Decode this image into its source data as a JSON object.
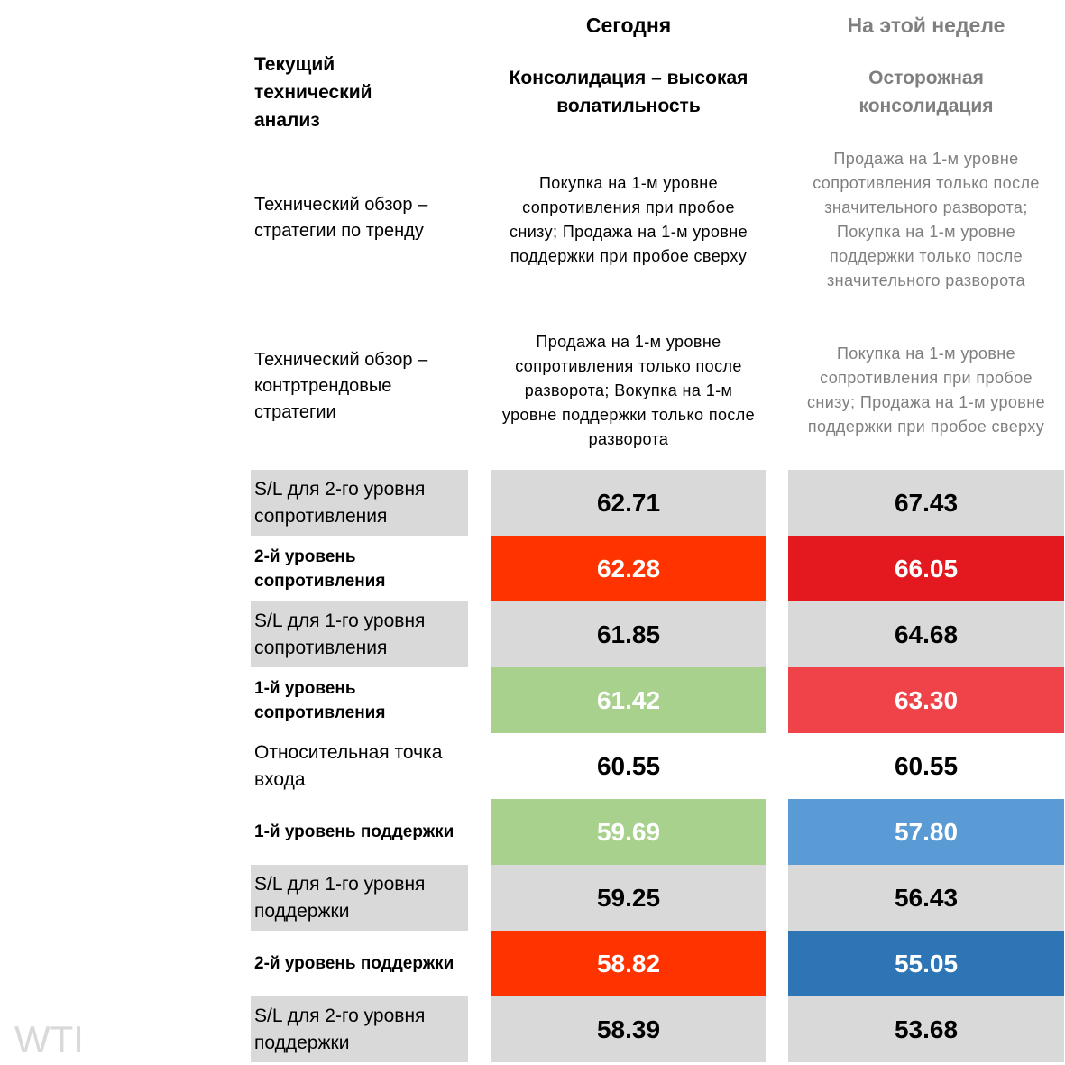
{
  "corner": "Текущий технический анализ",
  "columns": [
    {
      "title": "Сегодня",
      "subtitle": "Консолидация – высокая волатильность",
      "color": "#000000"
    },
    {
      "title": "На этой неделе",
      "subtitle": "Осторожная консолидация",
      "color": "#7f7f7f"
    }
  ],
  "strategies": [
    {
      "label": "Технический обзор – стратегии по тренду",
      "values": [
        "Покупка на 1-м уровне сопротивления при пробое снизу; Продажа на 1-м уровне поддержки при пробое сверху",
        "Продажа на 1-м уровне сопротивления только после значительного разворота; Покупка на 1-м уровне поддержки только после значительного разворота"
      ]
    },
    {
      "label": "Технический обзор – контртрендовые стратегии",
      "values": [
        "Продажа на 1-м уровне сопротивления только после разворота; Вокупка на 1-м уровне поддержки только после разворота",
        "Покупка на 1-м уровне сопротивления при пробое снизу; Продажа на 1-м уровне поддержки при пробое сверху"
      ]
    }
  ],
  "levels": [
    {
      "label": "S/L для 2-го уровня сопротивления",
      "bold": false,
      "label_fill": "#d9d9d9",
      "values": [
        "62.71",
        "67.43"
      ],
      "fills": [
        "#d9d9d9",
        "#d9d9d9"
      ],
      "text_colors": [
        "#000000",
        "#000000"
      ]
    },
    {
      "label": "2-й уровень сопротивления",
      "bold": true,
      "label_fill": "#ffffff",
      "values": [
        "62.28",
        "66.05"
      ],
      "fills": [
        "#ff3300",
        "#e3191f"
      ],
      "text_colors": [
        "#ffffff",
        "#ffffff"
      ]
    },
    {
      "label": "S/L для 1-го уровня сопротивления",
      "bold": false,
      "label_fill": "#d9d9d9",
      "values": [
        "61.85",
        "64.68"
      ],
      "fills": [
        "#d9d9d9",
        "#d9d9d9"
      ],
      "text_colors": [
        "#000000",
        "#000000"
      ]
    },
    {
      "label": "1-й уровень сопротивления",
      "bold": true,
      "label_fill": "#ffffff",
      "values": [
        "61.42",
        "63.30"
      ],
      "fills": [
        "#a9d18e",
        "#ef4349"
      ],
      "text_colors": [
        "#ffffff",
        "#ffffff"
      ]
    },
    {
      "label": "Относительная точка входа",
      "bold": false,
      "label_fill": "#ffffff",
      "values": [
        "60.55",
        "60.55"
      ],
      "fills": [
        "#ffffff",
        "#ffffff"
      ],
      "text_colors": [
        "#000000",
        "#000000"
      ]
    },
    {
      "label": "1-й уровень поддержки",
      "bold": true,
      "label_fill": "#ffffff",
      "values": [
        "59.69",
        "57.80"
      ],
      "fills": [
        "#a9d18e",
        "#5b9bd5"
      ],
      "text_colors": [
        "#ffffff",
        "#ffffff"
      ]
    },
    {
      "label": "S/L для 1-го уровня поддержки",
      "bold": false,
      "label_fill": "#d9d9d9",
      "values": [
        "59.25",
        "56.43"
      ],
      "fills": [
        "#d9d9d9",
        "#d9d9d9"
      ],
      "text_colors": [
        "#000000",
        "#000000"
      ]
    },
    {
      "label": "2-й уровень поддержки",
      "bold": true,
      "label_fill": "#ffffff",
      "values": [
        "58.82",
        "55.05"
      ],
      "fills": [
        "#ff3300",
        "#2e75b6"
      ],
      "text_colors": [
        "#ffffff",
        "#ffffff"
      ]
    },
    {
      "label": "S/L для 2-го уровня поддержки",
      "bold": false,
      "label_fill": "#d9d9d9",
      "values": [
        "58.39",
        "53.68"
      ],
      "fills": [
        "#d9d9d9",
        "#d9d9d9"
      ],
      "text_colors": [
        "#000000",
        "#000000"
      ]
    }
  ],
  "watermark": "WTI"
}
